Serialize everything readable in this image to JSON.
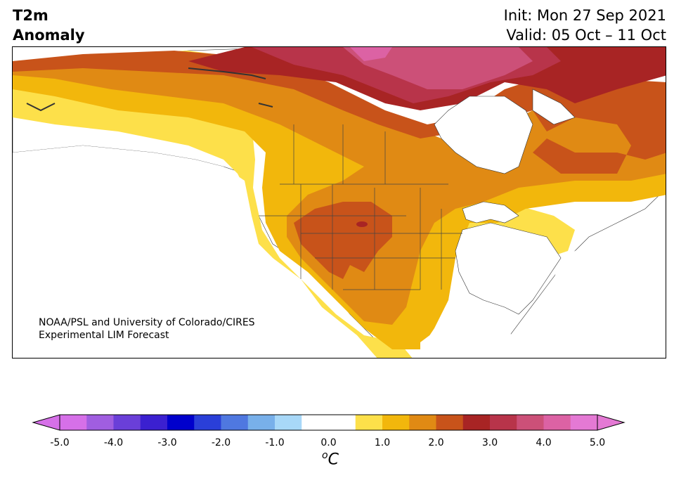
{
  "title": {
    "line1": "T2m",
    "line2": "Anomaly"
  },
  "dates": {
    "init": "Init: Mon 27 Sep 2021",
    "valid": "Valid: 05 Oct – 11 Oct"
  },
  "credit": {
    "line1": "NOAA/PSL and University of Colorado/CIRES",
    "line2": "Experimental LIM Forecast"
  },
  "colorbar": {
    "unit_base": "C",
    "unit_sup": "o",
    "min": -5.0,
    "max": 5.0,
    "step": 0.5,
    "extend": "both",
    "tick_labels": [
      "-5.0",
      "-4.0",
      "-3.0",
      "-2.0",
      "-1.0",
      "0.0",
      "1.0",
      "2.0",
      "3.0",
      "4.0",
      "5.0"
    ],
    "colors": [
      "#d670e8",
      "#a05ee0",
      "#6a3fd8",
      "#3b20d0",
      "#0000cc",
      "#2a3fd8",
      "#4f78e0",
      "#78b0ea",
      "#a8d8f8",
      "#ffffff",
      "#ffffff",
      "#fde04a",
      "#f2b70c",
      "#e08a14",
      "#c8531a",
      "#a82424",
      "#b8344a",
      "#cc5078",
      "#dc62a4",
      "#e479d4"
    ]
  }
}
